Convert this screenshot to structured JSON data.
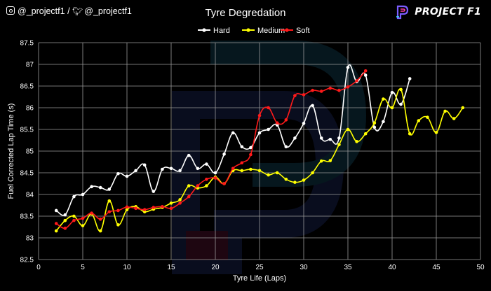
{
  "header": {
    "social_handle_instagram": "@_projectf1",
    "social_separator": "/",
    "social_handle_twitter": "@_projectf1",
    "brand_name": "PROJECT F1",
    "brand_colors": [
      "#7b5cff",
      "#ff3ea5",
      "#32e0ff"
    ]
  },
  "chart_data": {
    "type": "line",
    "title": "Tyre Degredation",
    "xlabel": "Tyre Life (Laps)",
    "ylabel": "Fuel Corrected Lap Time (s)",
    "xlim": [
      0,
      50
    ],
    "ylim": [
      82.5,
      87.5
    ],
    "x_ticks": [
      0,
      5,
      10,
      15,
      20,
      25,
      30,
      35,
      40,
      45,
      50
    ],
    "y_ticks": [
      82.5,
      83,
      83.5,
      84,
      84.5,
      85,
      85.5,
      86,
      86.5,
      87,
      87.5
    ],
    "grid": true,
    "legend_position": "top-center",
    "series": [
      {
        "name": "Hard",
        "color": "#ffffff",
        "x": [
          2,
          3,
          4,
          5,
          6,
          7,
          8,
          9,
          10,
          11,
          12,
          13,
          14,
          15,
          16,
          17,
          18,
          19,
          20,
          21,
          22,
          23,
          24,
          25,
          26,
          27,
          28,
          29,
          30,
          31,
          32,
          33,
          34,
          35,
          36,
          37,
          38,
          39,
          40,
          41,
          42
        ],
        "y": [
          83.63,
          83.53,
          83.95,
          84.0,
          84.18,
          84.16,
          84.12,
          84.48,
          84.42,
          84.55,
          84.68,
          84.07,
          84.58,
          84.6,
          84.55,
          84.9,
          84.6,
          84.7,
          84.5,
          84.93,
          85.42,
          85.1,
          85.08,
          85.42,
          85.5,
          85.6,
          85.1,
          85.3,
          85.64,
          86.05,
          85.3,
          85.27,
          85.3,
          86.93,
          86.6,
          86.75,
          85.55,
          85.68,
          86.35,
          86.08,
          86.67
        ]
      },
      {
        "name": "Medium",
        "color": "#ffff00",
        "x": [
          2,
          3,
          4,
          5,
          6,
          7,
          8,
          9,
          10,
          11,
          12,
          13,
          14,
          15,
          16,
          17,
          18,
          19,
          20,
          21,
          22,
          23,
          24,
          25,
          26,
          27,
          28,
          29,
          30,
          31,
          32,
          33,
          34,
          35,
          36,
          37,
          38,
          39,
          40,
          41,
          42,
          43,
          44,
          45,
          46,
          47,
          48
        ],
        "y": [
          83.16,
          83.4,
          83.5,
          83.28,
          83.55,
          83.16,
          83.85,
          83.3,
          83.65,
          83.72,
          83.6,
          83.66,
          83.7,
          83.8,
          83.88,
          84.2,
          84.15,
          84.2,
          84.4,
          84.25,
          84.55,
          84.55,
          84.58,
          84.55,
          84.45,
          84.5,
          84.35,
          84.28,
          84.33,
          84.5,
          84.77,
          84.78,
          85.15,
          85.5,
          85.22,
          85.4,
          85.65,
          86.2,
          86.0,
          86.42,
          85.4,
          85.7,
          85.78,
          85.43,
          85.92,
          85.75,
          86.0
        ]
      },
      {
        "name": "Soft",
        "color": "#ff1a1a",
        "x": [
          2,
          3,
          4,
          5,
          6,
          7,
          8,
          9,
          10,
          11,
          12,
          13,
          14,
          15,
          16,
          17,
          18,
          19,
          20,
          21,
          22,
          23,
          24,
          25,
          26,
          27,
          28,
          29,
          30,
          31,
          32,
          33,
          34,
          35,
          36,
          37
        ],
        "y": [
          83.33,
          83.22,
          83.4,
          83.45,
          83.57,
          83.43,
          83.6,
          83.63,
          83.71,
          83.68,
          83.65,
          83.7,
          83.72,
          83.68,
          83.8,
          83.95,
          84.2,
          84.35,
          84.38,
          84.25,
          84.6,
          84.73,
          84.92,
          85.82,
          86.0,
          85.65,
          85.72,
          86.28,
          86.3,
          86.4,
          86.38,
          86.45,
          86.4,
          86.48,
          86.62,
          86.85
        ]
      }
    ]
  }
}
